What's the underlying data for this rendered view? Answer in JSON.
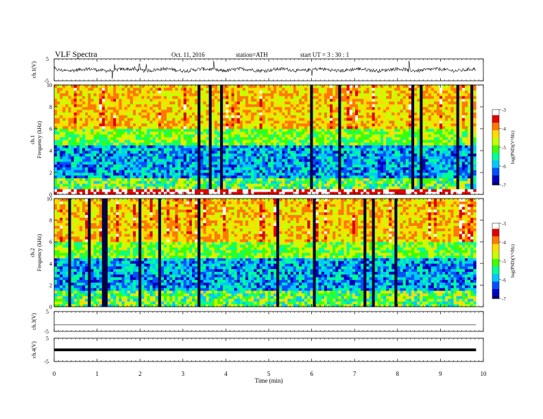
{
  "header": {
    "title": "VLF Spectra",
    "date": "Oct. 11, 2016",
    "station": "station=ATH",
    "start": "start  UT =   3  : 30 : 1"
  },
  "chart_data": {
    "type": "heatmap",
    "xlabel": "Time  (min)",
    "xlim": [
      0,
      10
    ],
    "xticks": [
      "0",
      "1",
      "2",
      "3",
      "4",
      "5",
      "6",
      "7",
      "8",
      "9",
      "10"
    ],
    "data_end_min": 9.83,
    "panels": [
      {
        "id": "ch1-wave",
        "type": "line",
        "ylabel": "ch.1(V)",
        "yticks": [
          "5",
          "-5"
        ],
        "ylim": [
          -5,
          5
        ],
        "level": 0.0,
        "noise": "high"
      },
      {
        "id": "ch1-spec",
        "type": "heatmap",
        "ylabel_top": "ch.1",
        "ylabel": "Frequency  (kHz)",
        "yticks": [
          "0",
          "2",
          "4",
          "6",
          "8",
          "10"
        ],
        "ylim": [
          0,
          10
        ],
        "colorbar": {
          "label": "log(PSD)(V²/Hz)",
          "ticks": [
            "-3",
            "-4",
            "-5",
            "-6",
            "-7"
          ],
          "range": [
            -7,
            -3
          ]
        }
      },
      {
        "id": "ch2-spec",
        "type": "heatmap",
        "ylabel_top": "ch.2",
        "ylabel": "Frequency  (kHz)",
        "yticks": [
          "0",
          "2",
          "4",
          "6",
          "8",
          "10"
        ],
        "ylim": [
          0,
          10
        ],
        "colorbar": {
          "label": "log(PSD)(V²/Hz)",
          "ticks": [
            "-3",
            "-4",
            "-5",
            "-6",
            "-7"
          ],
          "range": [
            -7,
            -3
          ]
        }
      },
      {
        "id": "ch3-wave",
        "type": "line",
        "ylabel": "ch.3(V)",
        "yticks": [
          "5",
          "-5"
        ],
        "ylim": [
          -5,
          5
        ],
        "level": 0.0,
        "noise": "none"
      },
      {
        "id": "ch4-wave",
        "type": "line",
        "ylabel": "ch.4(V)",
        "yticks": [
          "5",
          "-5"
        ],
        "ylim": [
          -5,
          5
        ],
        "level": 0.0,
        "noise": "thick"
      }
    ],
    "colormap": [
      "#000040",
      "#0000c0",
      "#0050ff",
      "#00c8ff",
      "#00ff96",
      "#3cff00",
      "#c8ff00",
      "#ffdc00",
      "#ff7800",
      "#e00000",
      "#ffffff"
    ],
    "grid": false
  }
}
